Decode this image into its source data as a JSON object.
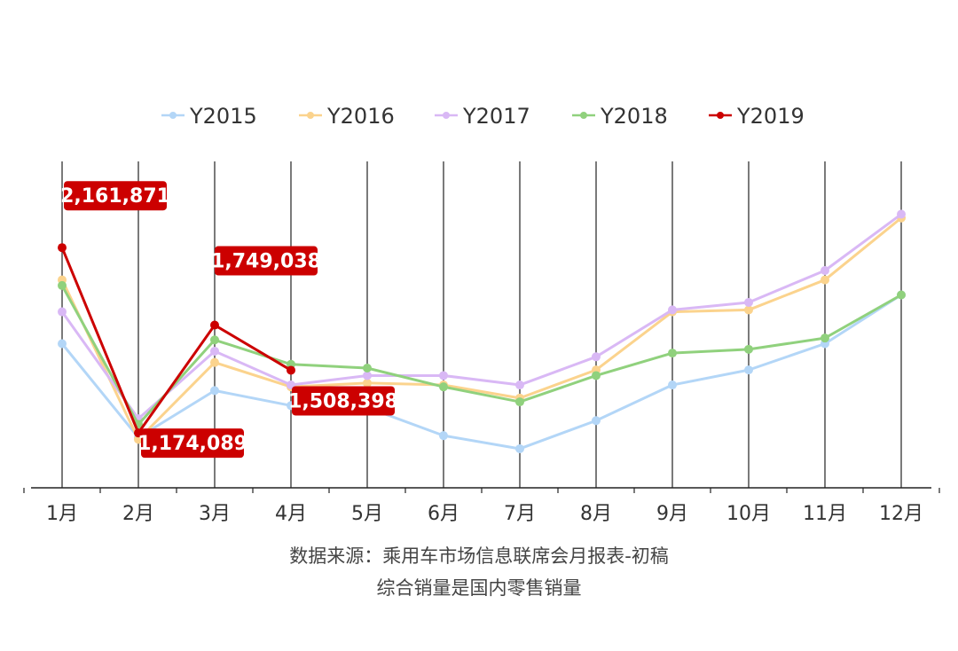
{
  "chart_data": {
    "type": "line",
    "categories": [
      "1月",
      "2月",
      "3月",
      "4月",
      "5月",
      "6月",
      "7月",
      "8月",
      "9月",
      "10月",
      "11月",
      "12月"
    ],
    "series": [
      {
        "name": "Y2015",
        "color": "#b3d6f7",
        "values": [
          1650000,
          1150000,
          1400000,
          1320000,
          1310000,
          1160000,
          1090000,
          1240000,
          1430000,
          1510000,
          1650000,
          1910000
        ]
      },
      {
        "name": "Y2016",
        "color": "#fbd38d",
        "values": [
          1990000,
          1140000,
          1550000,
          1420000,
          1440000,
          1430000,
          1360000,
          1510000,
          1820000,
          1830000,
          1990000,
          2320000
        ]
      },
      {
        "name": "Y2017",
        "color": "#d9b8f5",
        "values": [
          1820000,
          1250000,
          1610000,
          1430000,
          1480000,
          1480000,
          1430000,
          1580000,
          1830000,
          1870000,
          2040000,
          2340000
        ]
      },
      {
        "name": "Y2018",
        "color": "#90d17d",
        "values": [
          1960000,
          1220000,
          1670000,
          1540000,
          1520000,
          1420000,
          1340000,
          1480000,
          1600000,
          1620000,
          1680000,
          1910000
        ]
      },
      {
        "name": "Y2019",
        "color": "#cc0000",
        "values": [
          2161871,
          1174089,
          1749038,
          1508398,
          null,
          null,
          null,
          null,
          null,
          null,
          null,
          null
        ]
      }
    ],
    "annotations": [
      {
        "series": "Y2019",
        "category": "1月",
        "text": "2,161,871"
      },
      {
        "series": "Y2019",
        "category": "2月",
        "text": "1,174,089"
      },
      {
        "series": "Y2019",
        "category": "3月",
        "text": "1,749,038"
      },
      {
        "series": "Y2019",
        "category": "4月",
        "text": "1,508,398"
      }
    ],
    "legend_position": "top",
    "grid": "vertical",
    "title": "",
    "xlabel": "",
    "ylabel": ""
  },
  "source": {
    "line1": "数据来源：乘用车市场信息联席会月报表-初稿",
    "line2": "综合销量是国内零售销量"
  }
}
